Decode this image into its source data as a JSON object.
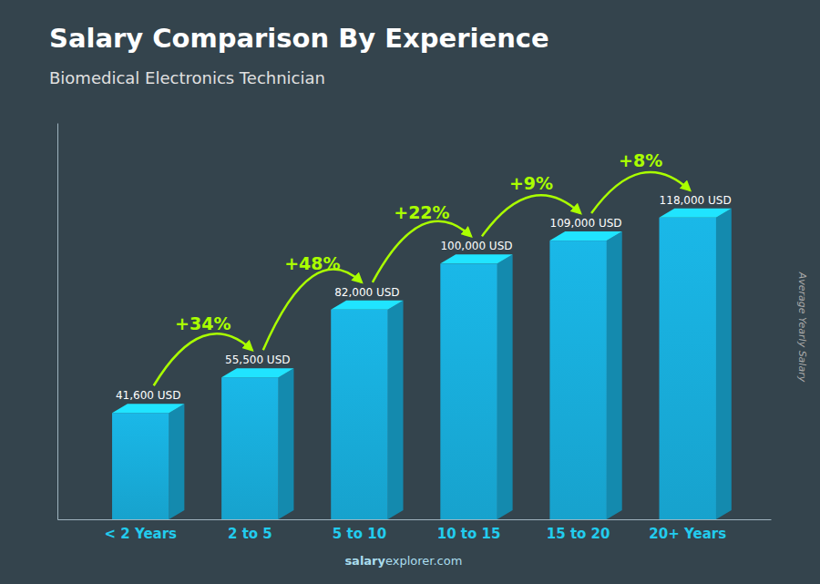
{
  "chart_data": {
    "type": "bar",
    "title": "Salary Comparison By Experience",
    "subtitle": "Biomedical Electronics Technician",
    "categories": [
      "< 2 Years",
      "2 to 5",
      "5 to 10",
      "10 to 15",
      "15 to 20",
      "20+ Years"
    ],
    "values": [
      41600,
      55500,
      82000,
      100000,
      109000,
      118000
    ],
    "value_labels": [
      "41,600 USD",
      "55,500 USD",
      "82,000 USD",
      "100,000 USD",
      "109,000 USD",
      "118,000 USD"
    ],
    "data_labels": true,
    "color": "#1ab8e8",
    "ylabel": "Average Yearly Salary",
    "ylim": [
      0,
      155000
    ],
    "tick_labels": "x",
    "grid": false,
    "annotations": [
      {
        "text": "+34%",
        "color": "#aaff00"
      },
      {
        "text": "+48%",
        "color": "#aaff00"
      },
      {
        "text": "+22%",
        "color": "#aaff00"
      },
      {
        "text": "+9%",
        "color": "#aaff00"
      },
      {
        "text": "+8%",
        "color": "#aaff00"
      },
      {
        "text": "salary"
      },
      {
        "text": "explorer.com"
      }
    ]
  }
}
